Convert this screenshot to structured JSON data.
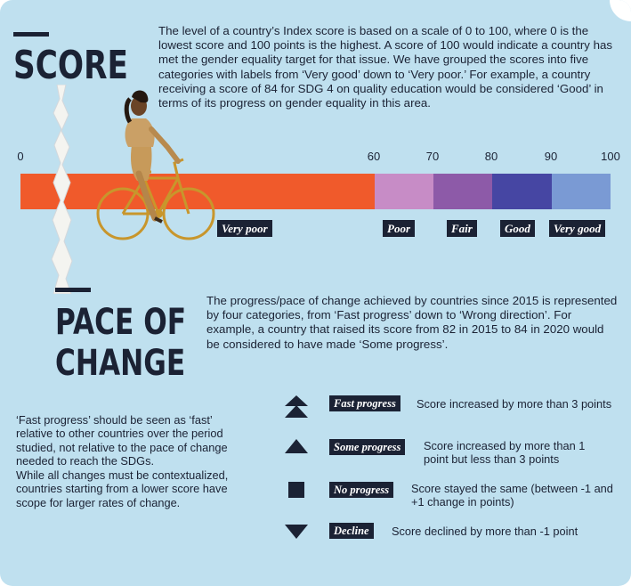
{
  "score": {
    "heading": "SCORE",
    "description": "The level of a country’s Index score is based on a scale of 0 to 100, where 0 is the lowest score and 100 points is the highest.  A score of 100 would indicate a country has met the gender equality target for that issue. We have grouped the scores into five categories with labels from ‘Very good’ down to ‘Very poor.’ For example, a country receiving a score of 84 for SDG 4 on quality education would be considered ‘Good’ in terms of its progress on gender equality in this area.",
    "scale": {
      "ticks": [
        "0",
        "60",
        "70",
        "80",
        "90",
        "100"
      ],
      "categories": [
        {
          "label": "Very poor",
          "from": 0,
          "to": 60,
          "color": "#f05a2b"
        },
        {
          "label": "Poor",
          "from": 60,
          "to": 70,
          "color": "#c78cc6"
        },
        {
          "label": "Fair",
          "from": 70,
          "to": 80,
          "color": "#8d5aa8"
        },
        {
          "label": "Good",
          "from": 80,
          "to": 90,
          "color": "#4646a3"
        },
        {
          "label": "Very good",
          "from": 90,
          "to": 100,
          "color": "#7a9ad4"
        }
      ]
    }
  },
  "pace": {
    "heading_line1": "PACE OF",
    "heading_line2": "CHANGE",
    "description": "The progress/pace of change achieved by countries since 2015 is represented by four categories, from ‘Fast progress’ down to ‘Wrong direction’. For example, a country that raised its score from 82 in 2015 to 84 in 2020 would be considered to have made ‘Some progress’.",
    "note_1": "‘Fast progress’ should be seen as ‘fast’ relative to other countries over the period studied, not relative to the pace of change needed to reach the SDGs.",
    "note_2": "While all changes must be contextualized, countries starting from a lower score have scope for larger rates of change.",
    "categories": [
      {
        "icon": "double-up-arrow-icon",
        "label": "Fast progress",
        "text": "Score increased by more than 3 points"
      },
      {
        "icon": "up-triangle-icon",
        "label": "Some progress",
        "text": "Score increased by more than 1 point but less than 3 points"
      },
      {
        "icon": "square-icon",
        "label": "No progress",
        "text": "Score stayed the same (between -1 and +1 change in points)"
      },
      {
        "icon": "down-triangle-icon",
        "label": "Decline",
        "text": "Score declined by more than -1 point"
      }
    ]
  },
  "colors": {
    "background": "#bfe0ef",
    "ink": "#1b2234"
  }
}
